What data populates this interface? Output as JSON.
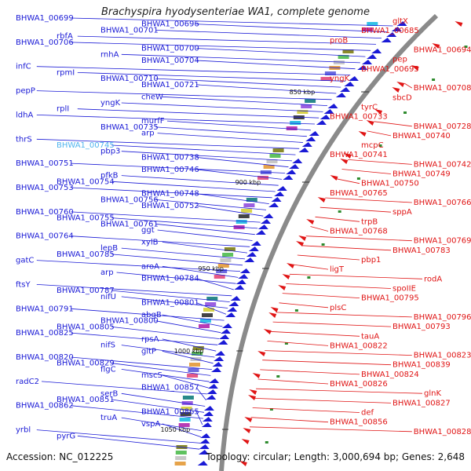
{
  "title": "Brachyspira hyodysenteriae WA1, complete genome",
  "footer": {
    "accession": "Accession: NC_012225",
    "topology": "Topology: circular; Length: 3,000,694 bp; Genes: 2,648"
  },
  "ticks": [
    {
      "text": "850 kbp"
    },
    {
      "text": "900 kbp"
    },
    {
      "text": "950 kbp"
    },
    {
      "text": "1000 kbp"
    },
    {
      "text": "1050 kbp"
    }
  ],
  "colors": {
    "forward": "#1a1ad6",
    "reverse": "#e01515",
    "highlight": "#4fb4ee",
    "backbone": "#8a8a8a"
  },
  "left_labels": [
    "BHWA1_00699",
    "BHWA1_00696",
    "BHWA1_00701",
    "rbfA",
    "BHWA1_00706",
    "BHWA1_00700",
    "rnhA",
    "BHWA1_00704",
    "infC",
    "rpmI",
    "BHWA1_00710",
    "BHWA1_00721",
    "pepP",
    "cheW",
    "yngK",
    "rplI",
    "ldhA",
    "murfF",
    "BHWA1_00735",
    "arp",
    "thrS",
    "BHWA1_00745",
    "pbp3",
    "BHWA1_00738",
    "BHWA1_00751",
    "BHWA1_00746",
    "pfkB",
    "BHWA1_00754",
    "BHWA1_00753",
    "BHWA1_00748",
    "BHWA1_00756",
    "BHWA1_00752",
    "BHWA1_00760",
    "BHWA1_00755",
    "BHWA1_00761",
    "ggt",
    "BHWA1_00764",
    "xylB",
    "lepB",
    "BHWA1_00785",
    "gatC",
    "aroA",
    "arp",
    "BHWA1_00784",
    "ftsY",
    "BHWA1_00787",
    "nifU",
    "BHWA1_00801",
    "BHWA1_00791",
    "abgB",
    "BHWA1_00800",
    "BHWA1_00805",
    "BHWA1_00825",
    "rpsA",
    "nifS",
    "gltP",
    "BHWA1_00820",
    "BHWA1_00829",
    "flgC",
    "mscS",
    "radC2",
    "BHWA1_00857",
    "serB",
    "BHWA1_00851",
    "BHWA1_00862",
    "BHWA1_00865",
    "truA",
    "vspA",
    "yrbl",
    "pyrG"
  ],
  "right_labels": [
    "gltX",
    "BHWA1_00685",
    "proB",
    "BHWA1_00694",
    "pep",
    "BHWA1_00695",
    "yngK",
    "BHWA1_00708",
    "sbcD",
    "tyrC",
    "BHWA1_00733",
    "BHWA1_00728",
    "BHWA1_00740",
    "mcpC",
    "BHWA1_00741",
    "BHWA1_00742",
    "BHWA1_00749",
    "BHWA1_00750",
    "BHWA1_00765",
    "BHWA1_00766",
    "sppA",
    "trpB",
    "BHWA1_00768",
    "BHWA1_00769",
    "BHWA1_00783",
    "pbp1",
    "ligT",
    "rodA",
    "spoIIE",
    "BHWA1_00795",
    "plsC",
    "BHWA1_00796",
    "BHWA1_00793",
    "tauA",
    "BHWA1_00822",
    "BHWA1_00823",
    "BHWA1_00839",
    "BHWA1_00824",
    "BHWA1_00826",
    "glnK",
    "BHWA1_00827",
    "def",
    "BHWA1_00856",
    "BHWA1_00828"
  ]
}
